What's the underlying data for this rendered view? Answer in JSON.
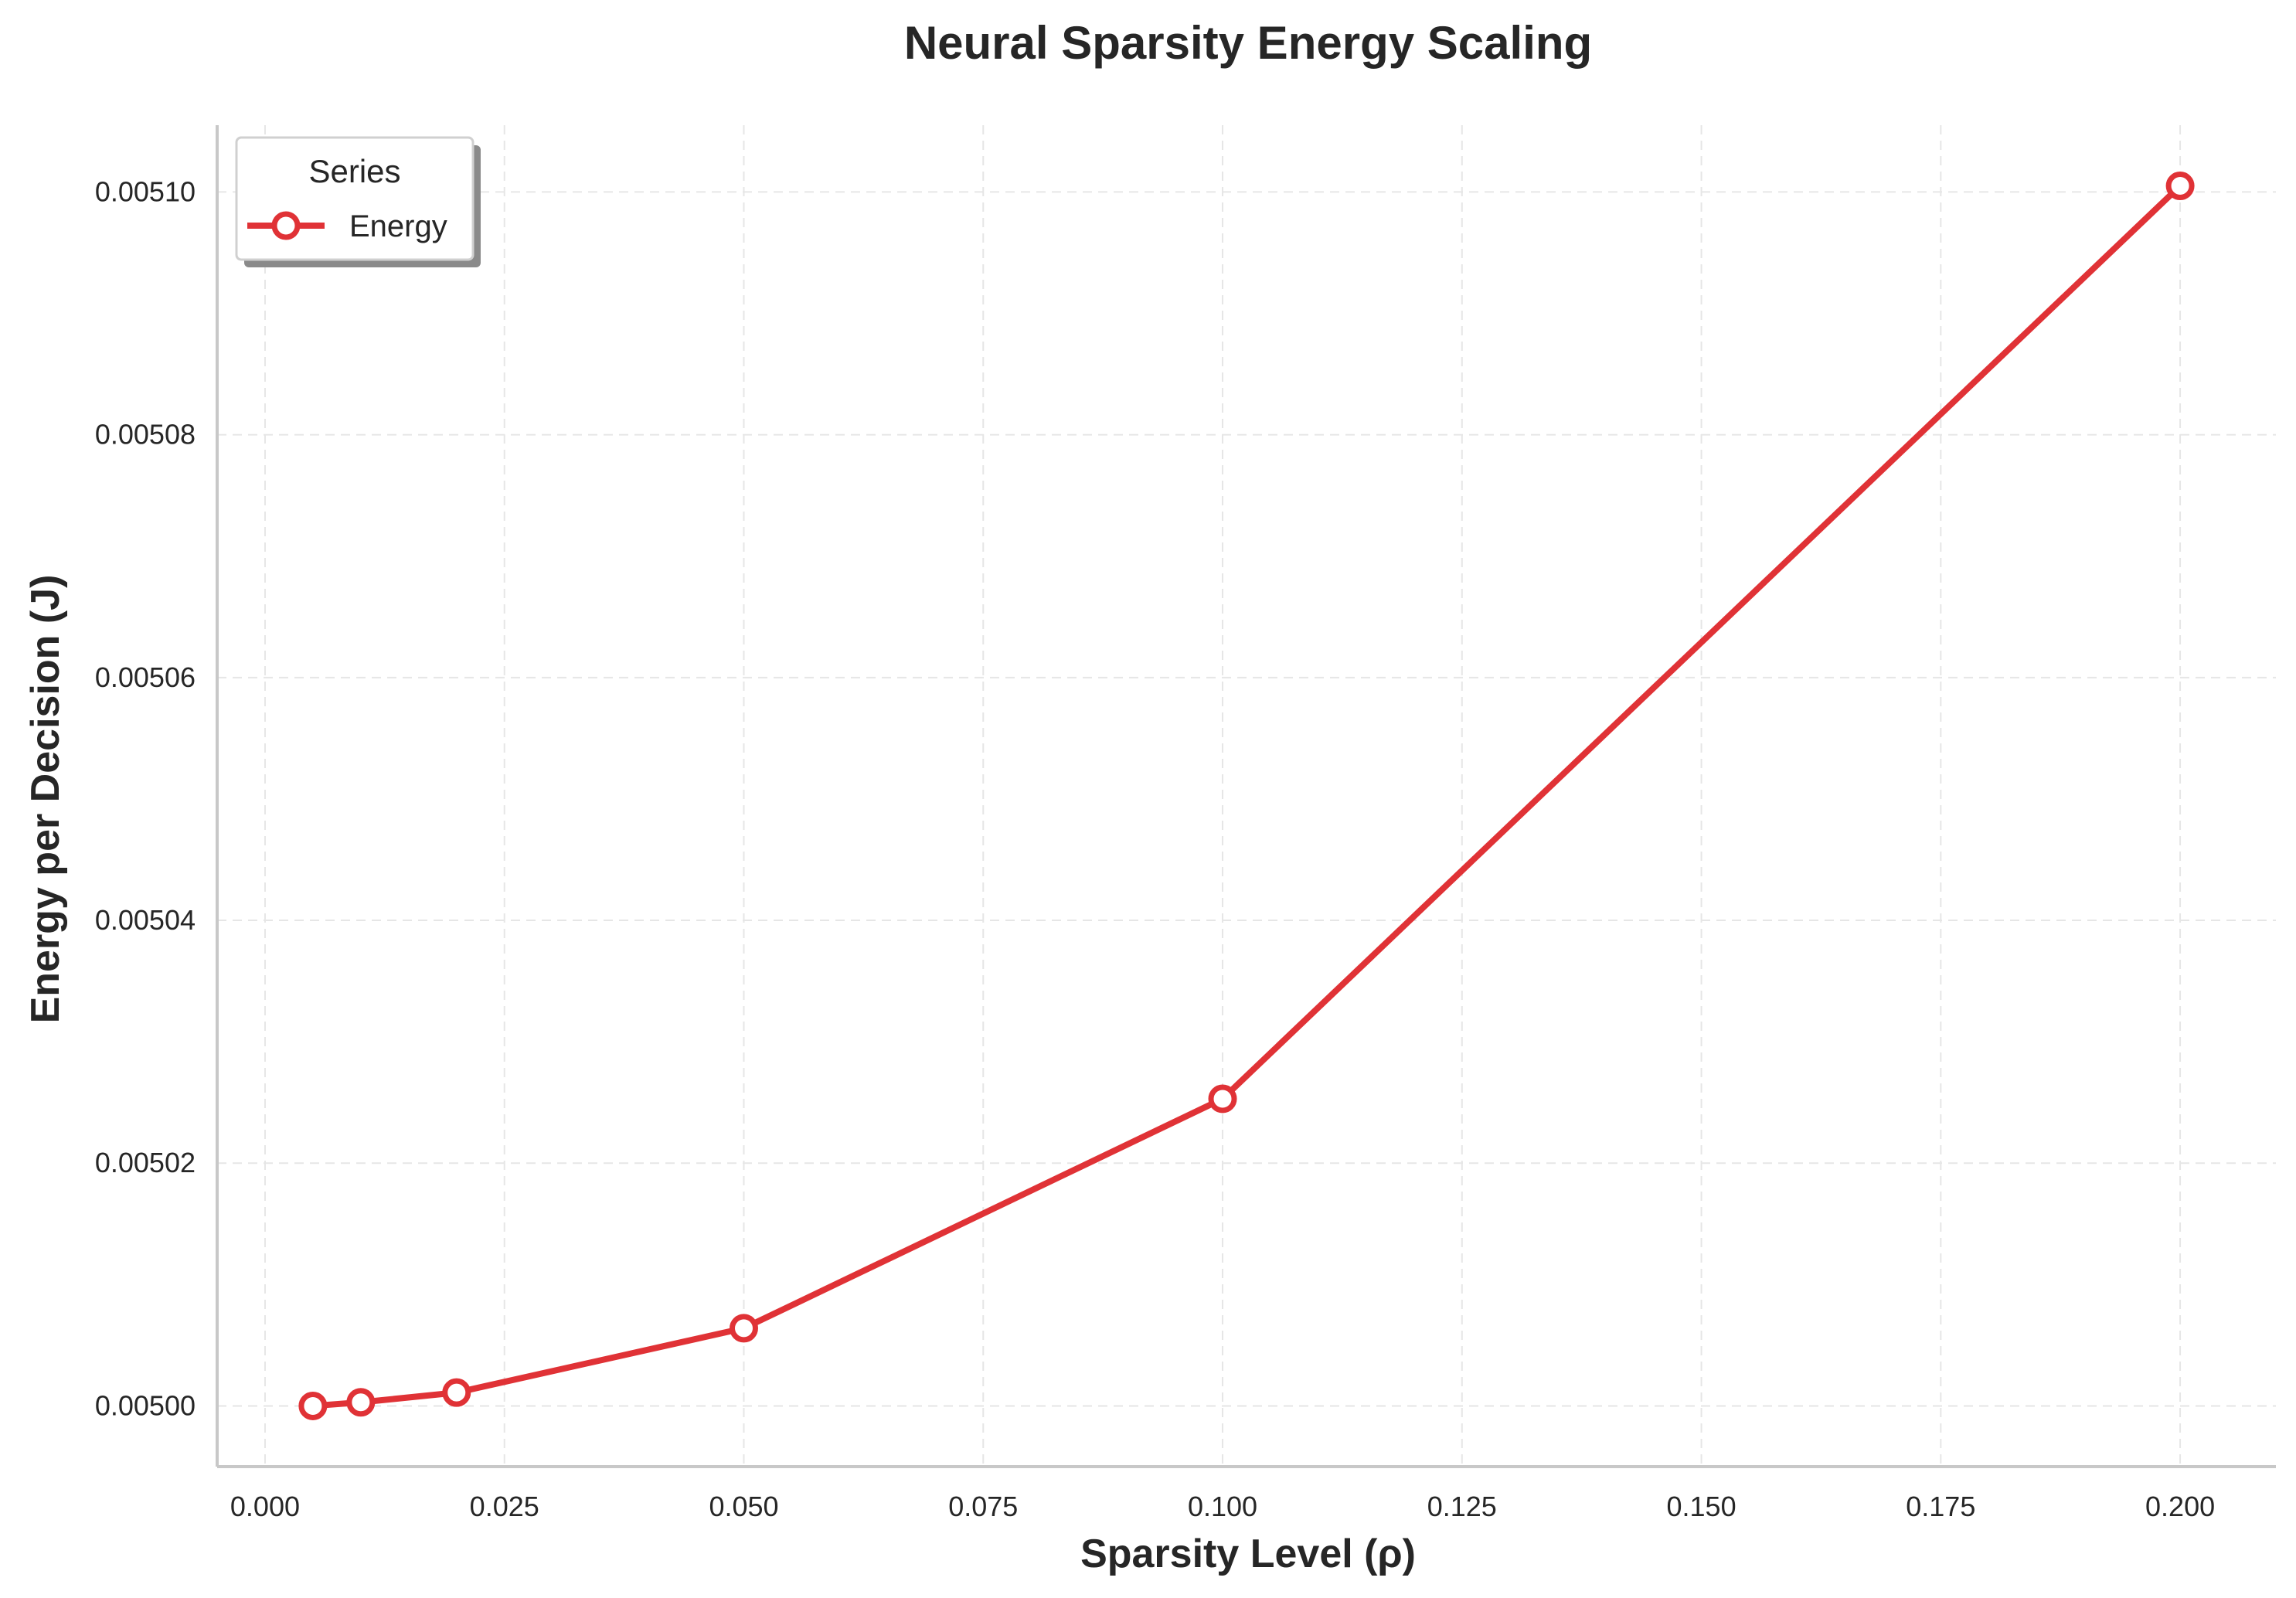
{
  "chart_data": {
    "type": "line",
    "title": "Neural Sparsity Energy Scaling",
    "xlabel": "Sparsity Level (ρ)",
    "ylabel": "Energy per Decision (J)",
    "xlim": [
      -0.005,
      0.21
    ],
    "ylim": [
      0.004995,
      0.0051055
    ],
    "x_ticks": [
      0.0,
      0.025,
      0.05,
      0.075,
      0.1,
      0.125,
      0.15,
      0.175,
      0.2
    ],
    "x_tick_labels": [
      "0.000",
      "0.025",
      "0.050",
      "0.075",
      "0.100",
      "0.125",
      "0.150",
      "0.175",
      "0.200"
    ],
    "y_ticks": [
      0.005,
      0.00502,
      0.00504,
      0.00506,
      0.00508,
      0.0051
    ],
    "y_tick_labels": [
      "0.00500",
      "0.00502",
      "0.00504",
      "0.00506",
      "0.00508",
      "0.00510"
    ],
    "grid": true,
    "legend": {
      "title": "Series",
      "placement": "top-left"
    },
    "series": [
      {
        "name": "Energy",
        "color": "#e03236",
        "marker": "open-circle",
        "x": [
          0.005,
          0.01,
          0.02,
          0.05,
          0.1,
          0.2
        ],
        "y": [
          0.005,
          0.0050003,
          0.0050011,
          0.0050064,
          0.0050253,
          0.0051005
        ]
      }
    ]
  }
}
